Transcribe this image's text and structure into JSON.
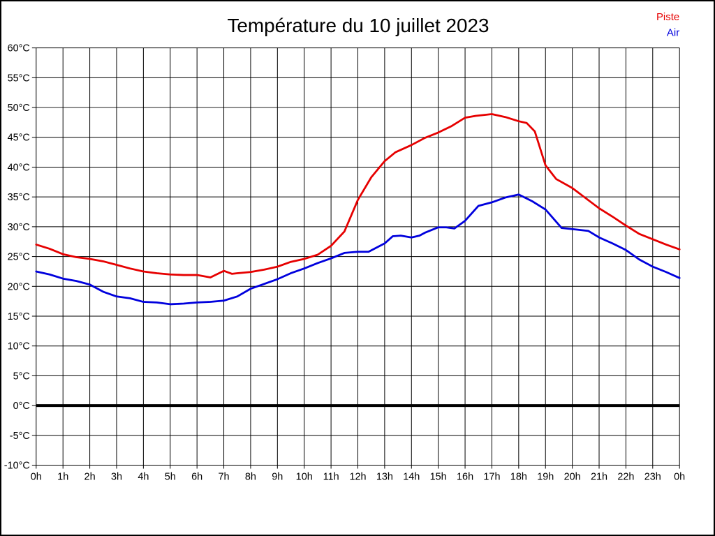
{
  "title": "Température du 10 juillet 2023",
  "legend": [
    {
      "label": "Piste",
      "color": "#e60000"
    },
    {
      "label": "Air",
      "color": "#0000dd"
    }
  ],
  "chart_data": {
    "type": "line",
    "title": "Température du 10 juillet 2023",
    "xlabel": "",
    "ylabel": "",
    "x_unit": "hour of day",
    "y_unit": "°C",
    "xlim": [
      0,
      24
    ],
    "ylim": [
      -10,
      60
    ],
    "grid": true,
    "legend_position": "top-right",
    "zero_line_value": 0,
    "x_ticks": {
      "values": [
        0,
        1,
        2,
        3,
        4,
        5,
        6,
        7,
        8,
        9,
        10,
        11,
        12,
        13,
        14,
        15,
        16,
        17,
        18,
        19,
        20,
        21,
        22,
        23,
        24
      ],
      "labels": [
        "0h",
        "1h",
        "2h",
        "3h",
        "4h",
        "5h",
        "6h",
        "7h",
        "8h",
        "9h",
        "10h",
        "11h",
        "12h",
        "13h",
        "14h",
        "15h",
        "16h",
        "17h",
        "18h",
        "19h",
        "20h",
        "21h",
        "22h",
        "23h",
        "0h"
      ]
    },
    "y_ticks": {
      "values": [
        60,
        55,
        50,
        45,
        40,
        35,
        30,
        25,
        20,
        15,
        10,
        5,
        0,
        -5,
        -10
      ],
      "labels": [
        "60°C",
        "55°C",
        "50°C",
        "45°C",
        "40°C",
        "35°C",
        "30°C",
        "25°C",
        "20°C",
        "15°C",
        "10°C",
        "5°C",
        "0°C",
        "-5°C",
        "-10°C"
      ]
    },
    "series": [
      {
        "name": "Piste",
        "color": "#e60000",
        "points": [
          [
            0,
            27.0
          ],
          [
            0.5,
            26.3
          ],
          [
            1,
            25.4
          ],
          [
            1.5,
            24.9
          ],
          [
            2,
            24.6
          ],
          [
            2.5,
            24.2
          ],
          [
            3,
            23.6
          ],
          [
            3.5,
            23.0
          ],
          [
            4,
            22.5
          ],
          [
            4.5,
            22.2
          ],
          [
            5,
            22.0
          ],
          [
            5.5,
            21.9
          ],
          [
            6,
            21.9
          ],
          [
            6.5,
            21.5
          ],
          [
            7,
            22.6
          ],
          [
            7.3,
            22.1
          ],
          [
            7.5,
            22.2
          ],
          [
            8,
            22.4
          ],
          [
            8.5,
            22.8
          ],
          [
            9,
            23.3
          ],
          [
            9.5,
            24.1
          ],
          [
            10,
            24.6
          ],
          [
            10.5,
            25.3
          ],
          [
            11,
            26.8
          ],
          [
            11.5,
            29.2
          ],
          [
            12,
            34.5
          ],
          [
            12.5,
            38.3
          ],
          [
            13,
            41.0
          ],
          [
            13.4,
            42.5
          ],
          [
            14,
            43.7
          ],
          [
            14.5,
            44.9
          ],
          [
            15,
            45.8
          ],
          [
            15.5,
            46.9
          ],
          [
            16,
            48.3
          ],
          [
            16.4,
            48.6
          ],
          [
            17,
            48.9
          ],
          [
            17.5,
            48.4
          ],
          [
            18,
            47.7
          ],
          [
            18.3,
            47.4
          ],
          [
            18.6,
            46.0
          ],
          [
            19,
            40.3
          ],
          [
            19.4,
            38.0
          ],
          [
            20,
            36.5
          ],
          [
            20.5,
            34.8
          ],
          [
            21,
            33.1
          ],
          [
            21.5,
            31.7
          ],
          [
            22,
            30.2
          ],
          [
            22.5,
            28.8
          ],
          [
            23,
            27.9
          ],
          [
            23.5,
            27.0
          ],
          [
            24,
            26.2
          ]
        ]
      },
      {
        "name": "Air",
        "color": "#0000dd",
        "points": [
          [
            0,
            22.5
          ],
          [
            0.5,
            22.0
          ],
          [
            1,
            21.3
          ],
          [
            1.5,
            20.9
          ],
          [
            2,
            20.3
          ],
          [
            2.5,
            19.1
          ],
          [
            3,
            18.3
          ],
          [
            3.5,
            18.0
          ],
          [
            4,
            17.4
          ],
          [
            4.5,
            17.3
          ],
          [
            5,
            17.0
          ],
          [
            5.5,
            17.1
          ],
          [
            6,
            17.3
          ],
          [
            6.5,
            17.4
          ],
          [
            7,
            17.6
          ],
          [
            7.5,
            18.3
          ],
          [
            8,
            19.6
          ],
          [
            8.5,
            20.4
          ],
          [
            9,
            21.2
          ],
          [
            9.5,
            22.2
          ],
          [
            10,
            23.0
          ],
          [
            10.5,
            23.9
          ],
          [
            11,
            24.7
          ],
          [
            11.5,
            25.6
          ],
          [
            12,
            25.8
          ],
          [
            12.4,
            25.8
          ],
          [
            13,
            27.2
          ],
          [
            13.3,
            28.4
          ],
          [
            13.6,
            28.5
          ],
          [
            14,
            28.2
          ],
          [
            14.3,
            28.5
          ],
          [
            14.5,
            29.0
          ],
          [
            15,
            29.9
          ],
          [
            15.3,
            29.9
          ],
          [
            15.6,
            29.7
          ],
          [
            16,
            31.0
          ],
          [
            16.5,
            33.5
          ],
          [
            17,
            34.1
          ],
          [
            17.5,
            34.9
          ],
          [
            18,
            35.4
          ],
          [
            18.5,
            34.3
          ],
          [
            19,
            32.9
          ],
          [
            19.6,
            29.8
          ],
          [
            20,
            29.6
          ],
          [
            20.6,
            29.3
          ],
          [
            21,
            28.2
          ],
          [
            21.5,
            27.2
          ],
          [
            22,
            26.1
          ],
          [
            22.5,
            24.5
          ],
          [
            23,
            23.3
          ],
          [
            23.5,
            22.4
          ],
          [
            24,
            21.4
          ]
        ]
      }
    ]
  }
}
